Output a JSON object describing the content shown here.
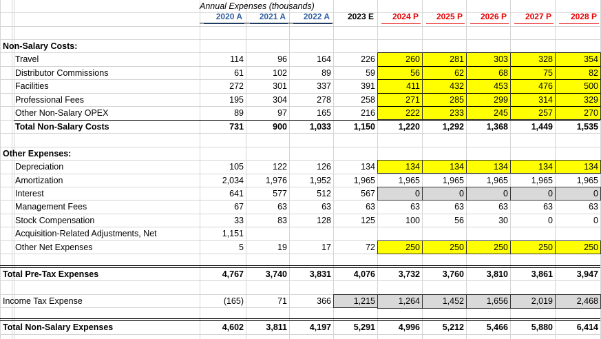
{
  "title": "Annual Expenses (thousands)",
  "headers": [
    {
      "label": "2020 A",
      "kind": "a"
    },
    {
      "label": "2021 A",
      "kind": "a"
    },
    {
      "label": "2022 A",
      "kind": "a"
    },
    {
      "label": "2023 E",
      "kind": "e"
    },
    {
      "label": "2024 P",
      "kind": "p"
    },
    {
      "label": "2025 P",
      "kind": "p"
    },
    {
      "label": "2026 P",
      "kind": "p"
    },
    {
      "label": "2027 P",
      "kind": "p"
    },
    {
      "label": "2028 P",
      "kind": "p"
    }
  ],
  "rows": [
    {
      "label": "Non-Salary Costs:",
      "values": [],
      "style": "section"
    },
    {
      "label": "Travel",
      "values": [
        "114",
        "96",
        "164",
        "226",
        "260",
        "281",
        "303",
        "328",
        "354"
      ],
      "style": "item"
    },
    {
      "label": "Distributor Commissions",
      "values": [
        "61",
        "102",
        "89",
        "59",
        "56",
        "62",
        "68",
        "75",
        "82"
      ],
      "style": "item"
    },
    {
      "label": "Facilities",
      "values": [
        "272",
        "301",
        "337",
        "391",
        "411",
        "432",
        "453",
        "476",
        "500"
      ],
      "style": "item"
    },
    {
      "label": "Professional Fees",
      "values": [
        "195",
        "304",
        "278",
        "258",
        "271",
        "285",
        "299",
        "314",
        "329"
      ],
      "style": "item"
    },
    {
      "label": "Other Non-Salary OPEX",
      "values": [
        "89",
        "97",
        "165",
        "216",
        "222",
        "233",
        "245",
        "257",
        "270"
      ],
      "style": "item"
    },
    {
      "label": "Total Non-Salary Costs",
      "values": [
        "731",
        "900",
        "1,033",
        "1,150",
        "1,220",
        "1,292",
        "1,368",
        "1,449",
        "1,535"
      ],
      "style": "total"
    },
    {
      "label": "",
      "values": [],
      "style": "blank"
    },
    {
      "label": "Other Expenses:",
      "values": [],
      "style": "section"
    },
    {
      "label": "Depreciation",
      "values": [
        "105",
        "122",
        "126",
        "134",
        "134",
        "134",
        "134",
        "134",
        "134"
      ],
      "style": "item"
    },
    {
      "label": "Amortization",
      "values": [
        "2,034",
        "1,976",
        "1,952",
        "1,965",
        "1,965",
        "1,965",
        "1,965",
        "1,965",
        "1,965"
      ],
      "style": "item"
    },
    {
      "label": "Interest",
      "values": [
        "641",
        "577",
        "512",
        "567",
        "0",
        "0",
        "0",
        "0",
        "0"
      ],
      "style": "item"
    },
    {
      "label": "Management Fees",
      "values": [
        "67",
        "63",
        "63",
        "63",
        "63",
        "63",
        "63",
        "63",
        "63"
      ],
      "style": "item"
    },
    {
      "label": "Stock Compensation",
      "values": [
        "33",
        "83",
        "128",
        "125",
        "100",
        "56",
        "30",
        "0",
        "0"
      ],
      "style": "item"
    },
    {
      "label": "Acquisition-Related Adjustments, Net",
      "values": [
        "1,151",
        "",
        "",
        "",
        "",
        "",
        "",
        "",
        ""
      ],
      "style": "item"
    },
    {
      "label": "Other Net Expenses",
      "values": [
        "5",
        "19",
        "17",
        "72",
        "250",
        "250",
        "250",
        "250",
        "250"
      ],
      "style": "item"
    },
    {
      "label": "",
      "values": [],
      "style": "blank"
    },
    {
      "label": "Total Pre-Tax Expenses",
      "values": [
        "4,767",
        "3,740",
        "3,831",
        "4,076",
        "3,732",
        "3,760",
        "3,810",
        "3,861",
        "3,947"
      ],
      "style": "total"
    },
    {
      "label": "",
      "values": [],
      "style": "blank"
    },
    {
      "label": "Income Tax Expense",
      "values": [
        "(165)",
        "71",
        "366",
        "1,215",
        "1,264",
        "1,452",
        "1,656",
        "2,019",
        "2,468"
      ],
      "style": "plain"
    },
    {
      "label": "",
      "values": [],
      "style": "blank"
    },
    {
      "label": "Total Non-Salary Expenses",
      "values": [
        "4,602",
        "3,811",
        "4,197",
        "5,291",
        "4,996",
        "5,212",
        "5,466",
        "5,880",
        "6,414"
      ],
      "style": "total"
    }
  ],
  "colors": {
    "highlight": "#ffff00",
    "gray_fill": "#d9d9d9",
    "actual_header": "#2e5fa3",
    "projection_header": "#e60000"
  }
}
